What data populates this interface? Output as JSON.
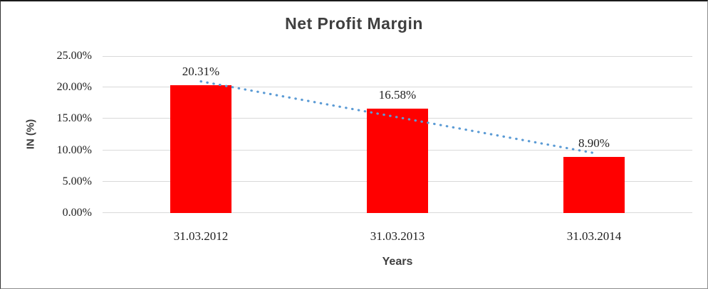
{
  "chart_data": {
    "type": "bar",
    "title": "Net Profit Margin",
    "xlabel": "Years",
    "ylabel": "IN (%)",
    "categories": [
      "31.03.2012",
      "31.03.2013",
      "31.03.2014"
    ],
    "values": [
      20.31,
      16.58,
      8.9
    ],
    "data_labels": [
      "20.31%",
      "16.58%",
      "8.90%"
    ],
    "ytick_labels": [
      "0.00%",
      "5.00%",
      "10.00%",
      "15.00%",
      "20.00%",
      "25.00%"
    ],
    "ytick_interval": 5,
    "ylim": [
      0,
      25
    ],
    "grid": true,
    "legend": "none",
    "trendline": {
      "type": "linear",
      "style": "dotted",
      "endpoints_percent": [
        20.97,
        9.56
      ]
    },
    "colors": {
      "bar": "#FF0000",
      "trendline": "#5B9BD5",
      "gridline": "#D9D9D9",
      "title_text": "#3F3F3F",
      "tick_text": "#1F1F1F"
    }
  }
}
